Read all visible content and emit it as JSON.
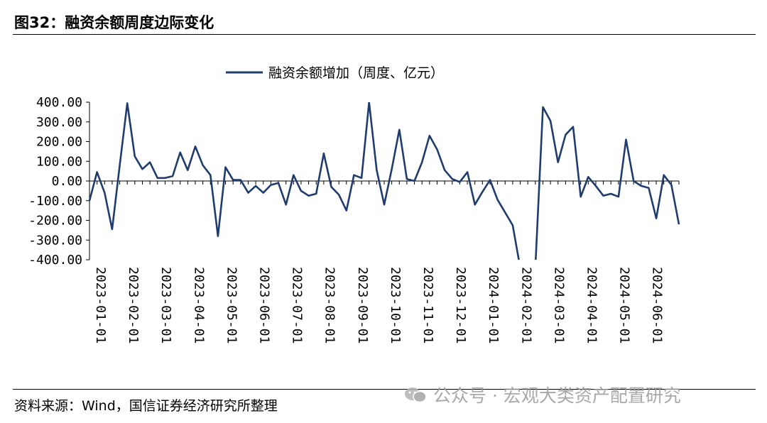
{
  "figure": {
    "title": "图32：融资余额周度边际变化",
    "source": "资料来源：Wind，国信证券经济研究所整理",
    "watermark": "公众号 · 宏观大类资产配置研究",
    "watermark_icon": "wechat-icon"
  },
  "chart_data": {
    "type": "line",
    "ylim": [
      -400,
      400
    ],
    "yticks": [
      400,
      300,
      200,
      100,
      0,
      -100,
      -200,
      -300,
      -400
    ],
    "ytick_labels": [
      "400.00",
      "300.00",
      "200.00",
      "100.00",
      "0.00",
      "-100.00",
      "-200.00",
      "-300.00",
      "-400.00"
    ],
    "xtick_labels": [
      "2023-01-01",
      "2023-02-01",
      "2023-03-01",
      "2023-04-01",
      "2023-05-01",
      "2023-06-01",
      "2023-07-01",
      "2023-08-01",
      "2023-09-01",
      "2023-10-01",
      "2023-11-01",
      "2023-12-01",
      "2024-01-01",
      "2024-02-01",
      "2024-03-01",
      "2024-04-01",
      "2024-05-01",
      "2024-06-01"
    ],
    "legend_position": "top-center",
    "grid": false,
    "series": [
      {
        "name": "融资余额增加（周度、亿元）",
        "color": "#1f3c6e",
        "values": [
          -100,
          45,
          -60,
          -245,
          80,
          395,
          125,
          60,
          95,
          15,
          15,
          25,
          145,
          55,
          175,
          80,
          30,
          -280,
          70,
          5,
          5,
          -60,
          -25,
          -60,
          -20,
          -10,
          -120,
          30,
          -50,
          -75,
          -65,
          140,
          -30,
          -70,
          -150,
          30,
          15,
          400,
          55,
          -120,
          60,
          260,
          10,
          0,
          95,
          230,
          160,
          55,
          10,
          -5,
          45,
          -120,
          -55,
          5,
          -95,
          -160,
          -225,
          -440,
          -460,
          -440,
          375,
          305,
          95,
          235,
          275,
          -80,
          20,
          -25,
          -75,
          -65,
          -80,
          210,
          0,
          -25,
          -35,
          -190,
          30,
          -20,
          -220
        ]
      }
    ]
  }
}
